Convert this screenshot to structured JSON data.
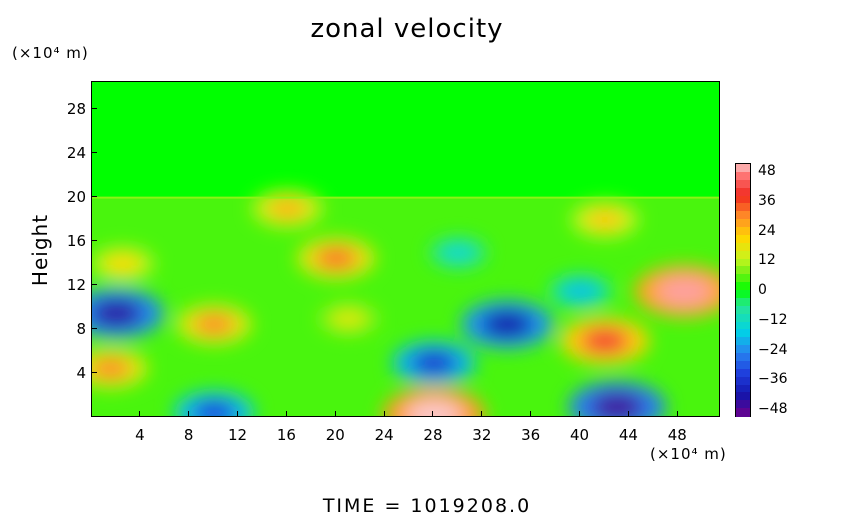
{
  "chart_data": {
    "type": "heatmap",
    "title": "zonal velocity",
    "xlabel": "",
    "ylabel": "Height",
    "x_unit": "(×10⁴ m)",
    "y_unit": "(×10⁴ m)",
    "xlim": [
      0,
      51.5
    ],
    "ylim": [
      0,
      30.5
    ],
    "x_ticks": [
      "4",
      "8",
      "12",
      "16",
      "20",
      "24",
      "28",
      "32",
      "36",
      "40",
      "44",
      "48"
    ],
    "y_ticks": [
      "4",
      "8",
      "12",
      "16",
      "20",
      "24",
      "28"
    ],
    "colorbar": {
      "ticks": [
        "48",
        "36",
        "24",
        "12",
        "0",
        "−12",
        "−24",
        "−36",
        "−48"
      ],
      "range": [
        -48,
        48
      ]
    },
    "layers": {
      "above_20": "uniform ≈ 0 (green)",
      "below_20": "mixed positive and negative velocities"
    },
    "features": [
      {
        "x": 28,
        "y": 0.3,
        "value": 48
      },
      {
        "x": 42,
        "y": 7,
        "value": 38
      },
      {
        "x": 48.5,
        "y": 11.5,
        "value": 46
      },
      {
        "x": 16,
        "y": 19,
        "value": 24
      },
      {
        "x": 20,
        "y": 14.5,
        "value": 30
      },
      {
        "x": 10,
        "y": 8.5,
        "value": 28
      },
      {
        "x": 2.5,
        "y": 14,
        "value": 20
      },
      {
        "x": 1.5,
        "y": 4.5,
        "value": 28
      },
      {
        "x": 42,
        "y": 18,
        "value": 22
      },
      {
        "x": 21,
        "y": 9,
        "value": 16
      },
      {
        "x": 34,
        "y": 8.5,
        "value": -40
      },
      {
        "x": 28,
        "y": 5,
        "value": -34
      },
      {
        "x": 2,
        "y": 9.5,
        "value": -42
      },
      {
        "x": 43,
        "y": 1,
        "value": -44
      },
      {
        "x": 10,
        "y": 0.5,
        "value": -32
      },
      {
        "x": 40,
        "y": 11.5,
        "value": -18
      },
      {
        "x": 30,
        "y": 15,
        "value": -14
      }
    ]
  },
  "footer": "TIME  =  1019208.0"
}
